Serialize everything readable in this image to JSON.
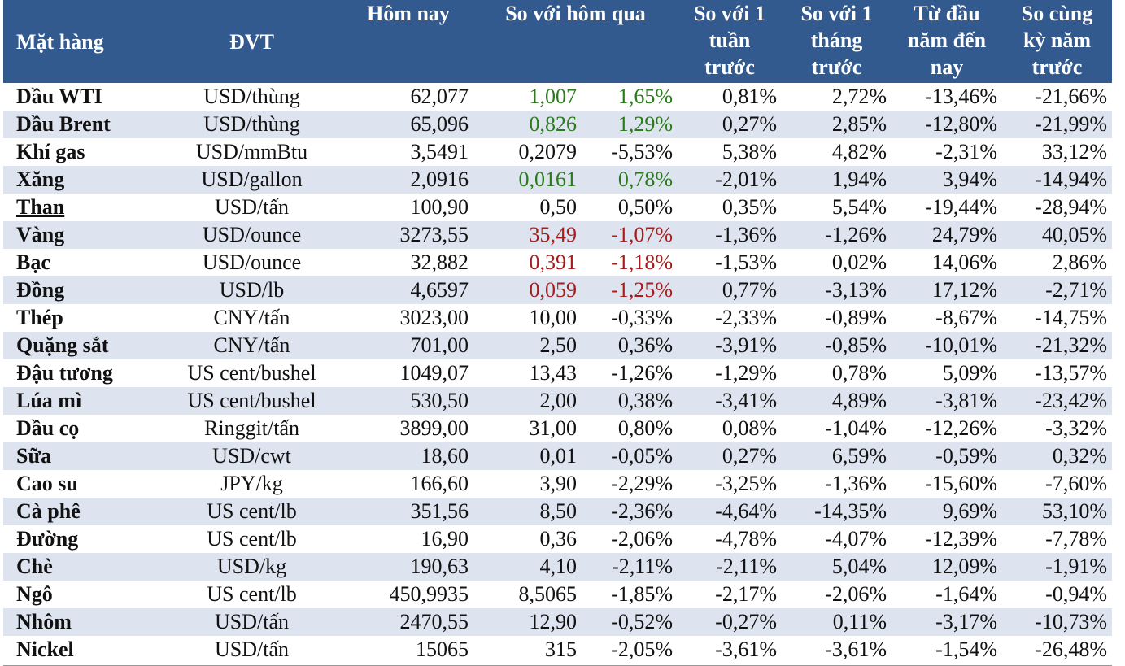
{
  "headers": {
    "item": "Mặt hàng",
    "unit": "ĐVT",
    "today": "Hôm nay",
    "vs_yesterday": "So với hôm qua",
    "vs_week_l1": "So với 1",
    "vs_week_l2": "tuần",
    "vs_week_l3": "trước",
    "vs_month_l1": "So với 1",
    "vs_month_l2": "tháng",
    "vs_month_l3": "trước",
    "ytd_l1": "Từ đầu",
    "ytd_l2": "năm đến",
    "ytd_l3": "nay",
    "yoy_l1": "So cùng",
    "yoy_l2": "kỳ năm",
    "yoy_l3": "trước"
  },
  "colors": {
    "header_bg": "#335a8e",
    "stripe": "#dde4ef",
    "up": "#2b7a1c",
    "down": "#a51e1e"
  },
  "rows": [
    {
      "item": "Dầu WTI",
      "unit": "USD/thùng",
      "today": "62,077",
      "chg": "1,007",
      "pct": "1,65%",
      "week": "0,81%",
      "month": "2,72%",
      "ytd": "-13,46%",
      "yoy": "-21,66%",
      "trend": "up"
    },
    {
      "item": "Dầu Brent",
      "unit": "USD/thùng",
      "today": "65,096",
      "chg": "0,826",
      "pct": "1,29%",
      "week": "0,27%",
      "month": "2,85%",
      "ytd": "-12,80%",
      "yoy": "-21,99%",
      "trend": "up"
    },
    {
      "item": "Khí gas",
      "unit": "USD/mmBtu",
      "today": "3,5491",
      "chg": "0,2079",
      "pct": "-5,53%",
      "week": "5,38%",
      "month": "4,82%",
      "ytd": "-2,31%",
      "yoy": "33,12%",
      "trend": "none"
    },
    {
      "item": "Xăng",
      "unit": "USD/gallon",
      "today": "2,0916",
      "chg": "0,0161",
      "pct": "0,78%",
      "week": "-2,01%",
      "month": "1,94%",
      "ytd": "3,94%",
      "yoy": "-14,94%",
      "trend": "up"
    },
    {
      "item": "Than",
      "unit": "USD/tấn",
      "today": "100,90",
      "chg": "0,50",
      "pct": "0,50%",
      "week": "0,35%",
      "month": "5,54%",
      "ytd": "-19,44%",
      "yoy": "-28,94%",
      "trend": "none"
    },
    {
      "item": "Vàng",
      "unit": "USD/ounce",
      "today": "3273,55",
      "chg": "35,49",
      "pct": "-1,07%",
      "week": "-1,36%",
      "month": "-1,26%",
      "ytd": "24,79%",
      "yoy": "40,05%",
      "trend": "down"
    },
    {
      "item": "Bạc",
      "unit": "USD/ounce",
      "today": "32,882",
      "chg": "0,391",
      "pct": "-1,18%",
      "week": "-1,53%",
      "month": "0,02%",
      "ytd": "14,06%",
      "yoy": "2,86%",
      "trend": "down"
    },
    {
      "item": "Đồng",
      "unit": "USD/lb",
      "today": "4,6597",
      "chg": "0,059",
      "pct": "-1,25%",
      "week": "0,77%",
      "month": "-3,13%",
      "ytd": "17,12%",
      "yoy": "-2,71%",
      "trend": "down"
    },
    {
      "item": "Thép",
      "unit": "CNY/tấn",
      "today": "3023,00",
      "chg": "10,00",
      "pct": "-0,33%",
      "week": "-2,33%",
      "month": "-0,89%",
      "ytd": "-8,67%",
      "yoy": "-14,75%",
      "trend": "none"
    },
    {
      "item": "Quặng sắt",
      "unit": "CNY/tấn",
      "today": "701,00",
      "chg": "2,50",
      "pct": "0,36%",
      "week": "-3,91%",
      "month": "-0,85%",
      "ytd": "-10,01%",
      "yoy": "-21,32%",
      "trend": "none"
    },
    {
      "item": "Đậu tương",
      "unit": "US cent/bushel",
      "today": "1049,07",
      "chg": "13,43",
      "pct": "-1,26%",
      "week": "-1,29%",
      "month": "0,78%",
      "ytd": "5,09%",
      "yoy": "-13,57%",
      "trend": "none"
    },
    {
      "item": "Lúa mì",
      "unit": "US cent/bushel",
      "today": "530,50",
      "chg": "2,00",
      "pct": "0,38%",
      "week": "-3,41%",
      "month": "4,89%",
      "ytd": "-3,81%",
      "yoy": "-23,42%",
      "trend": "none"
    },
    {
      "item": "Dầu cọ",
      "unit": "Ringgit/tấn",
      "today": "3899,00",
      "chg": "31,00",
      "pct": "0,80%",
      "week": "0,08%",
      "month": "-1,04%",
      "ytd": "-12,26%",
      "yoy": "-3,32%",
      "trend": "none"
    },
    {
      "item": "Sữa",
      "unit": "USD/cwt",
      "today": "18,60",
      "chg": "0,01",
      "pct": "-0,05%",
      "week": "0,27%",
      "month": "6,59%",
      "ytd": "-0,59%",
      "yoy": "0,32%",
      "trend": "none"
    },
    {
      "item": "Cao su",
      "unit": "JPY/kg",
      "today": "166,60",
      "chg": "3,90",
      "pct": "-2,29%",
      "week": "-3,25%",
      "month": "-1,36%",
      "ytd": "-15,60%",
      "yoy": "-7,60%",
      "trend": "none"
    },
    {
      "item": "Cà phê",
      "unit": "US cent/lb",
      "today": "351,56",
      "chg": "8,50",
      "pct": "-2,36%",
      "week": "-4,64%",
      "month": "-14,35%",
      "ytd": "9,69%",
      "yoy": "53,10%",
      "trend": "none"
    },
    {
      "item": "Đường",
      "unit": "US cent/lb",
      "today": "16,90",
      "chg": "0,36",
      "pct": "-2,06%",
      "week": "-4,78%",
      "month": "-4,07%",
      "ytd": "-12,39%",
      "yoy": "-7,78%",
      "trend": "none"
    },
    {
      "item": "Chè",
      "unit": "USD/kg",
      "today": "190,63",
      "chg": "4,10",
      "pct": "-2,11%",
      "week": "-2,11%",
      "month": "5,04%",
      "ytd": "12,09%",
      "yoy": "-1,91%",
      "trend": "none"
    },
    {
      "item": "Ngô",
      "unit": "US cent/lb",
      "today": "450,9935",
      "chg": "8,5065",
      "pct": "-1,85%",
      "week": "-2,17%",
      "month": "-2,06%",
      "ytd": "-1,64%",
      "yoy": "-0,94%",
      "trend": "none"
    },
    {
      "item": "Nhôm",
      "unit": "USD/tấn",
      "today": "2470,55",
      "chg": "12,90",
      "pct": "-0,52%",
      "week": "-0,27%",
      "month": "0,11%",
      "ytd": "-3,17%",
      "yoy": "-10,73%",
      "trend": "none"
    },
    {
      "item": "Nickel",
      "unit": "USD/tấn",
      "today": "15065",
      "chg": "315",
      "pct": "-2,05%",
      "week": "-3,61%",
      "month": "-3,61%",
      "ytd": "-1,54%",
      "yoy": "-26,48%",
      "trend": "none"
    }
  ]
}
